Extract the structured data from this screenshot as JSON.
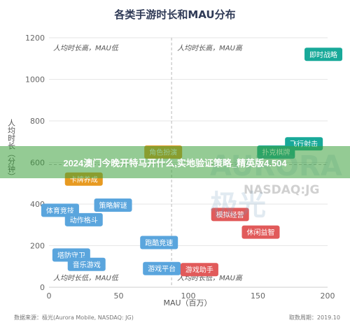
{
  "chart_data": {
    "type": "scatter",
    "title": "各类手游时长和MAU分布",
    "xlabel": "MAU（百万）",
    "ylabel": "人均时长（分钟）",
    "xlim": [
      0,
      200
    ],
    "ylim": [
      0,
      1200
    ],
    "x_ticks": [
      "0",
      "50",
      "100",
      "150",
      "200"
    ],
    "y_ticks": [
      "0",
      "200",
      "400",
      "600",
      "800",
      "1000",
      "1200"
    ],
    "reference_lines": {
      "x": 88,
      "y": 590
    },
    "quadrant_labels": {
      "top_left": "人均时长高，MAU低",
      "top_right": "人均时长高，MAU高",
      "bottom_left": "人均时长低，MAU低",
      "bottom_right": "人均时长低，MAU高"
    },
    "points": [
      {
        "name": "即时战略",
        "x": 197,
        "y": 1120,
        "color": "#18a999"
      },
      {
        "name": "飞行射击",
        "x": 183,
        "y": 690,
        "color": "#18a999"
      },
      {
        "name": "扑克棋牌",
        "x": 163,
        "y": 650,
        "color": "#18a999"
      },
      {
        "name": "角色扮演",
        "x": 82,
        "y": 650,
        "color": "#e79a21"
      },
      {
        "name": "卡牌养成",
        "x": 25,
        "y": 520,
        "color": "#e79a21"
      },
      {
        "name": "策略解谜",
        "x": 46,
        "y": 395,
        "color": "#5aa5dd"
      },
      {
        "name": "体育竞技",
        "x": 8,
        "y": 370,
        "color": "#5aa5dd"
      },
      {
        "name": "动作格斗",
        "x": 25,
        "y": 325,
        "color": "#5aa5dd"
      },
      {
        "name": "模拟经营",
        "x": 130,
        "y": 350,
        "color": "#e15a5a"
      },
      {
        "name": "休闲益智",
        "x": 152,
        "y": 265,
        "color": "#e15a5a"
      },
      {
        "name": "跑酷竞速",
        "x": 79,
        "y": 215,
        "color": "#5aa5dd"
      },
      {
        "name": "塔防守卫",
        "x": 16,
        "y": 155,
        "color": "#5aa5dd"
      },
      {
        "name": "音乐游戏",
        "x": 27,
        "y": 110,
        "color": "#5aa5dd"
      },
      {
        "name": "游戏平台",
        "x": 81,
        "y": 90,
        "color": "#5aa5dd"
      },
      {
        "name": "游戏助手",
        "x": 108,
        "y": 85,
        "color": "#e15a5a"
      }
    ]
  },
  "footer": {
    "source": "数据来源：极光(Aurora Mobile, NASDAQ: JG)",
    "date": "取数周期：2019.10"
  },
  "overlay": {
    "banner_text": "2024澳门今晚开特马开什么,实地验证策略_精英版4.504",
    "watermark_logo": "AURORA 极光",
    "watermark_text": "NASDAQ:JG"
  }
}
